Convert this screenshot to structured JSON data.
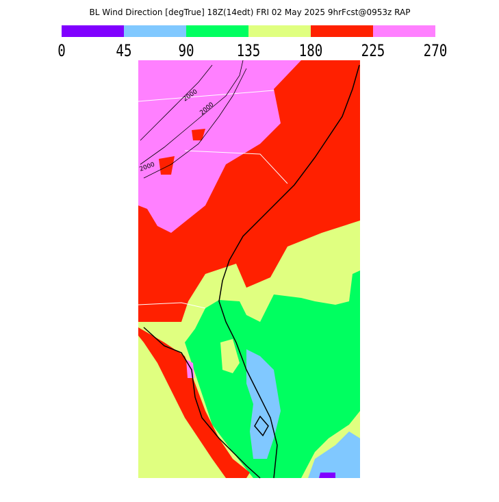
{
  "header": {
    "title": "BL Wind Direction [degTrue] 18Z(14edt) FRI 02 May 2025 9hrFcst@0953z RAP"
  },
  "legend": {
    "colors": [
      "#8000ff",
      "#80c8ff",
      "#00ff60",
      "#e0ff80",
      "#ff2000",
      "#ff80ff"
    ],
    "ticks": [
      0,
      45,
      90,
      135,
      180,
      225,
      270
    ]
  },
  "map": {
    "contour_labels": [
      "2000",
      "2000",
      "2000"
    ]
  }
}
